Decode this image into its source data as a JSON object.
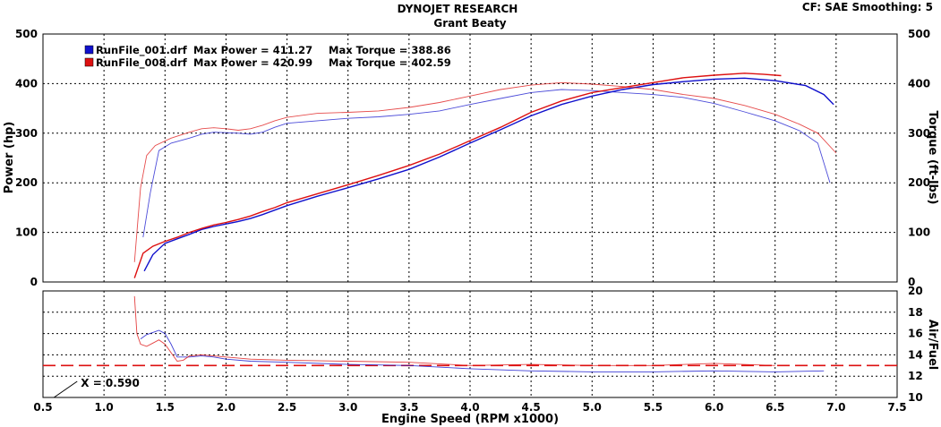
{
  "header": {
    "title": "DYNOJET RESEARCH",
    "subtitle": "Grant Beaty",
    "settings": "CF: SAE  Smoothing: 5"
  },
  "colors": {
    "run1": "#1010cc",
    "run2": "#dd1010",
    "target": "#dd1010",
    "grid": "#000000"
  },
  "chart_data": [
    {
      "type": "line",
      "name": "power-torque",
      "xlim": [
        0.5,
        7.5
      ],
      "ylim": [
        0,
        500
      ],
      "y2lim": [
        0,
        500
      ],
      "xticks": [
        0.5,
        1.0,
        1.5,
        2.0,
        2.5,
        3.0,
        3.5,
        4.0,
        4.5,
        5.0,
        5.5,
        6.0,
        6.5,
        7.0,
        7.5
      ],
      "yticks": [
        0,
        100,
        200,
        300,
        400,
        500
      ],
      "ylabel": "Power (hp)",
      "y2label": "Torque (ft-lbs)",
      "grid": true,
      "legend": [
        {
          "file": "RunFile_001.drf",
          "power_label": "Max Power = 411.27",
          "torque_label": "Max Torque = 388.86"
        },
        {
          "file": "RunFile_008.drf",
          "power_label": "Max Power = 420.99",
          "torque_label": "Max Torque = 402.59"
        }
      ],
      "series": [
        {
          "run": 0,
          "kind": "power",
          "x": [
            1.33,
            1.4,
            1.5,
            1.6,
            1.7,
            1.8,
            1.9,
            2.0,
            2.1,
            2.2,
            2.3,
            2.4,
            2.5,
            2.75,
            3.0,
            3.25,
            3.5,
            3.75,
            4.0,
            4.25,
            4.5,
            4.75,
            5.0,
            5.25,
            5.5,
            5.75,
            6.0,
            6.25,
            6.5,
            6.75,
            6.9,
            6.98
          ],
          "y": [
            22,
            55,
            78,
            87,
            96,
            106,
            112,
            117,
            122,
            128,
            136,
            145,
            154,
            173,
            190,
            208,
            227,
            252,
            280,
            307,
            335,
            358,
            375,
            388,
            398,
            404,
            409,
            411,
            406,
            396,
            378,
            358
          ]
        },
        {
          "run": 0,
          "kind": "torque",
          "x": [
            1.32,
            1.38,
            1.45,
            1.55,
            1.7,
            1.8,
            1.9,
            2.0,
            2.1,
            2.2,
            2.3,
            2.4,
            2.5,
            2.75,
            3.0,
            3.25,
            3.5,
            3.75,
            4.0,
            4.25,
            4.5,
            4.75,
            5.0,
            5.25,
            5.5,
            5.75,
            6.0,
            6.25,
            6.5,
            6.7,
            6.85,
            6.95
          ],
          "y": [
            90,
            180,
            265,
            280,
            290,
            298,
            302,
            301,
            300,
            298,
            302,
            312,
            320,
            325,
            330,
            333,
            338,
            345,
            358,
            370,
            382,
            388,
            386,
            382,
            378,
            372,
            360,
            343,
            325,
            305,
            280,
            200
          ]
        },
        {
          "run": 1,
          "kind": "power",
          "x": [
            1.25,
            1.32,
            1.4,
            1.5,
            1.6,
            1.7,
            1.8,
            1.9,
            2.0,
            2.1,
            2.2,
            2.3,
            2.4,
            2.5,
            2.75,
            3.0,
            3.25,
            3.5,
            3.75,
            4.0,
            4.25,
            4.5,
            4.75,
            5.0,
            5.25,
            5.5,
            5.75,
            6.0,
            6.25,
            6.4,
            6.55
          ],
          "y": [
            8,
            58,
            72,
            82,
            90,
            100,
            108,
            115,
            120,
            126,
            133,
            142,
            150,
            160,
            178,
            196,
            215,
            235,
            258,
            285,
            312,
            342,
            365,
            382,
            392,
            402,
            412,
            417,
            421,
            419,
            416
          ]
        },
        {
          "run": 1,
          "kind": "torque",
          "x": [
            1.25,
            1.3,
            1.35,
            1.42,
            1.55,
            1.7,
            1.8,
            1.9,
            2.0,
            2.1,
            2.2,
            2.3,
            2.4,
            2.5,
            2.75,
            3.0,
            3.25,
            3.5,
            3.75,
            4.0,
            4.25,
            4.5,
            4.75,
            5.0,
            5.25,
            5.5,
            5.75,
            6.0,
            6.25,
            6.5,
            6.7,
            6.85,
            7.0
          ],
          "y": [
            40,
            190,
            255,
            275,
            290,
            302,
            309,
            311,
            309,
            306,
            309,
            316,
            325,
            332,
            340,
            342,
            345,
            352,
            362,
            375,
            388,
            397,
            402,
            399,
            394,
            388,
            378,
            370,
            356,
            338,
            318,
            300,
            260
          ]
        }
      ]
    },
    {
      "type": "line",
      "name": "air-fuel",
      "xlim": [
        0.5,
        7.5
      ],
      "ylim": [
        10,
        20
      ],
      "xticks": [
        0.5,
        1.0,
        1.5,
        2.0,
        2.5,
        3.0,
        3.5,
        4.0,
        4.5,
        5.0,
        5.5,
        6.0,
        6.5,
        7.0,
        7.5
      ],
      "y2ticks": [
        10,
        12,
        14,
        16,
        18,
        20
      ],
      "xlabel": "Engine Speed (RPM x1000)",
      "y2label": "Air/Fuel",
      "target_afr": 13.0,
      "cursor": {
        "x": 0.59,
        "label": "X = 0.590"
      },
      "grid": true,
      "series": [
        {
          "run": 0,
          "x": [
            1.3,
            1.35,
            1.4,
            1.45,
            1.5,
            1.55,
            1.6,
            1.7,
            1.8,
            1.9,
            2.0,
            2.2,
            2.5,
            3.0,
            3.5,
            4.0,
            4.5,
            5.0,
            5.5,
            6.0,
            6.5,
            6.9
          ],
          "y": [
            15.5,
            15.9,
            16.1,
            16.3,
            16.0,
            15.0,
            13.8,
            13.8,
            13.9,
            13.8,
            13.6,
            13.4,
            13.3,
            13.1,
            13.0,
            12.7,
            12.5,
            12.4,
            12.4,
            12.5,
            12.4,
            12.5
          ]
        },
        {
          "run": 1,
          "x": [
            1.25,
            1.27,
            1.3,
            1.35,
            1.4,
            1.45,
            1.5,
            1.55,
            1.6,
            1.65,
            1.7,
            1.8,
            1.9,
            2.0,
            2.2,
            2.5,
            3.0,
            3.5,
            4.0,
            4.5,
            5.0,
            5.5,
            6.0,
            6.5
          ],
          "y": [
            19.5,
            16.0,
            15.0,
            14.8,
            15.1,
            15.4,
            15.0,
            14.2,
            13.4,
            13.5,
            13.9,
            14.0,
            13.9,
            13.8,
            13.6,
            13.5,
            13.4,
            13.3,
            13.0,
            13.1,
            13.0,
            13.0,
            13.2,
            13.0
          ]
        }
      ]
    }
  ]
}
